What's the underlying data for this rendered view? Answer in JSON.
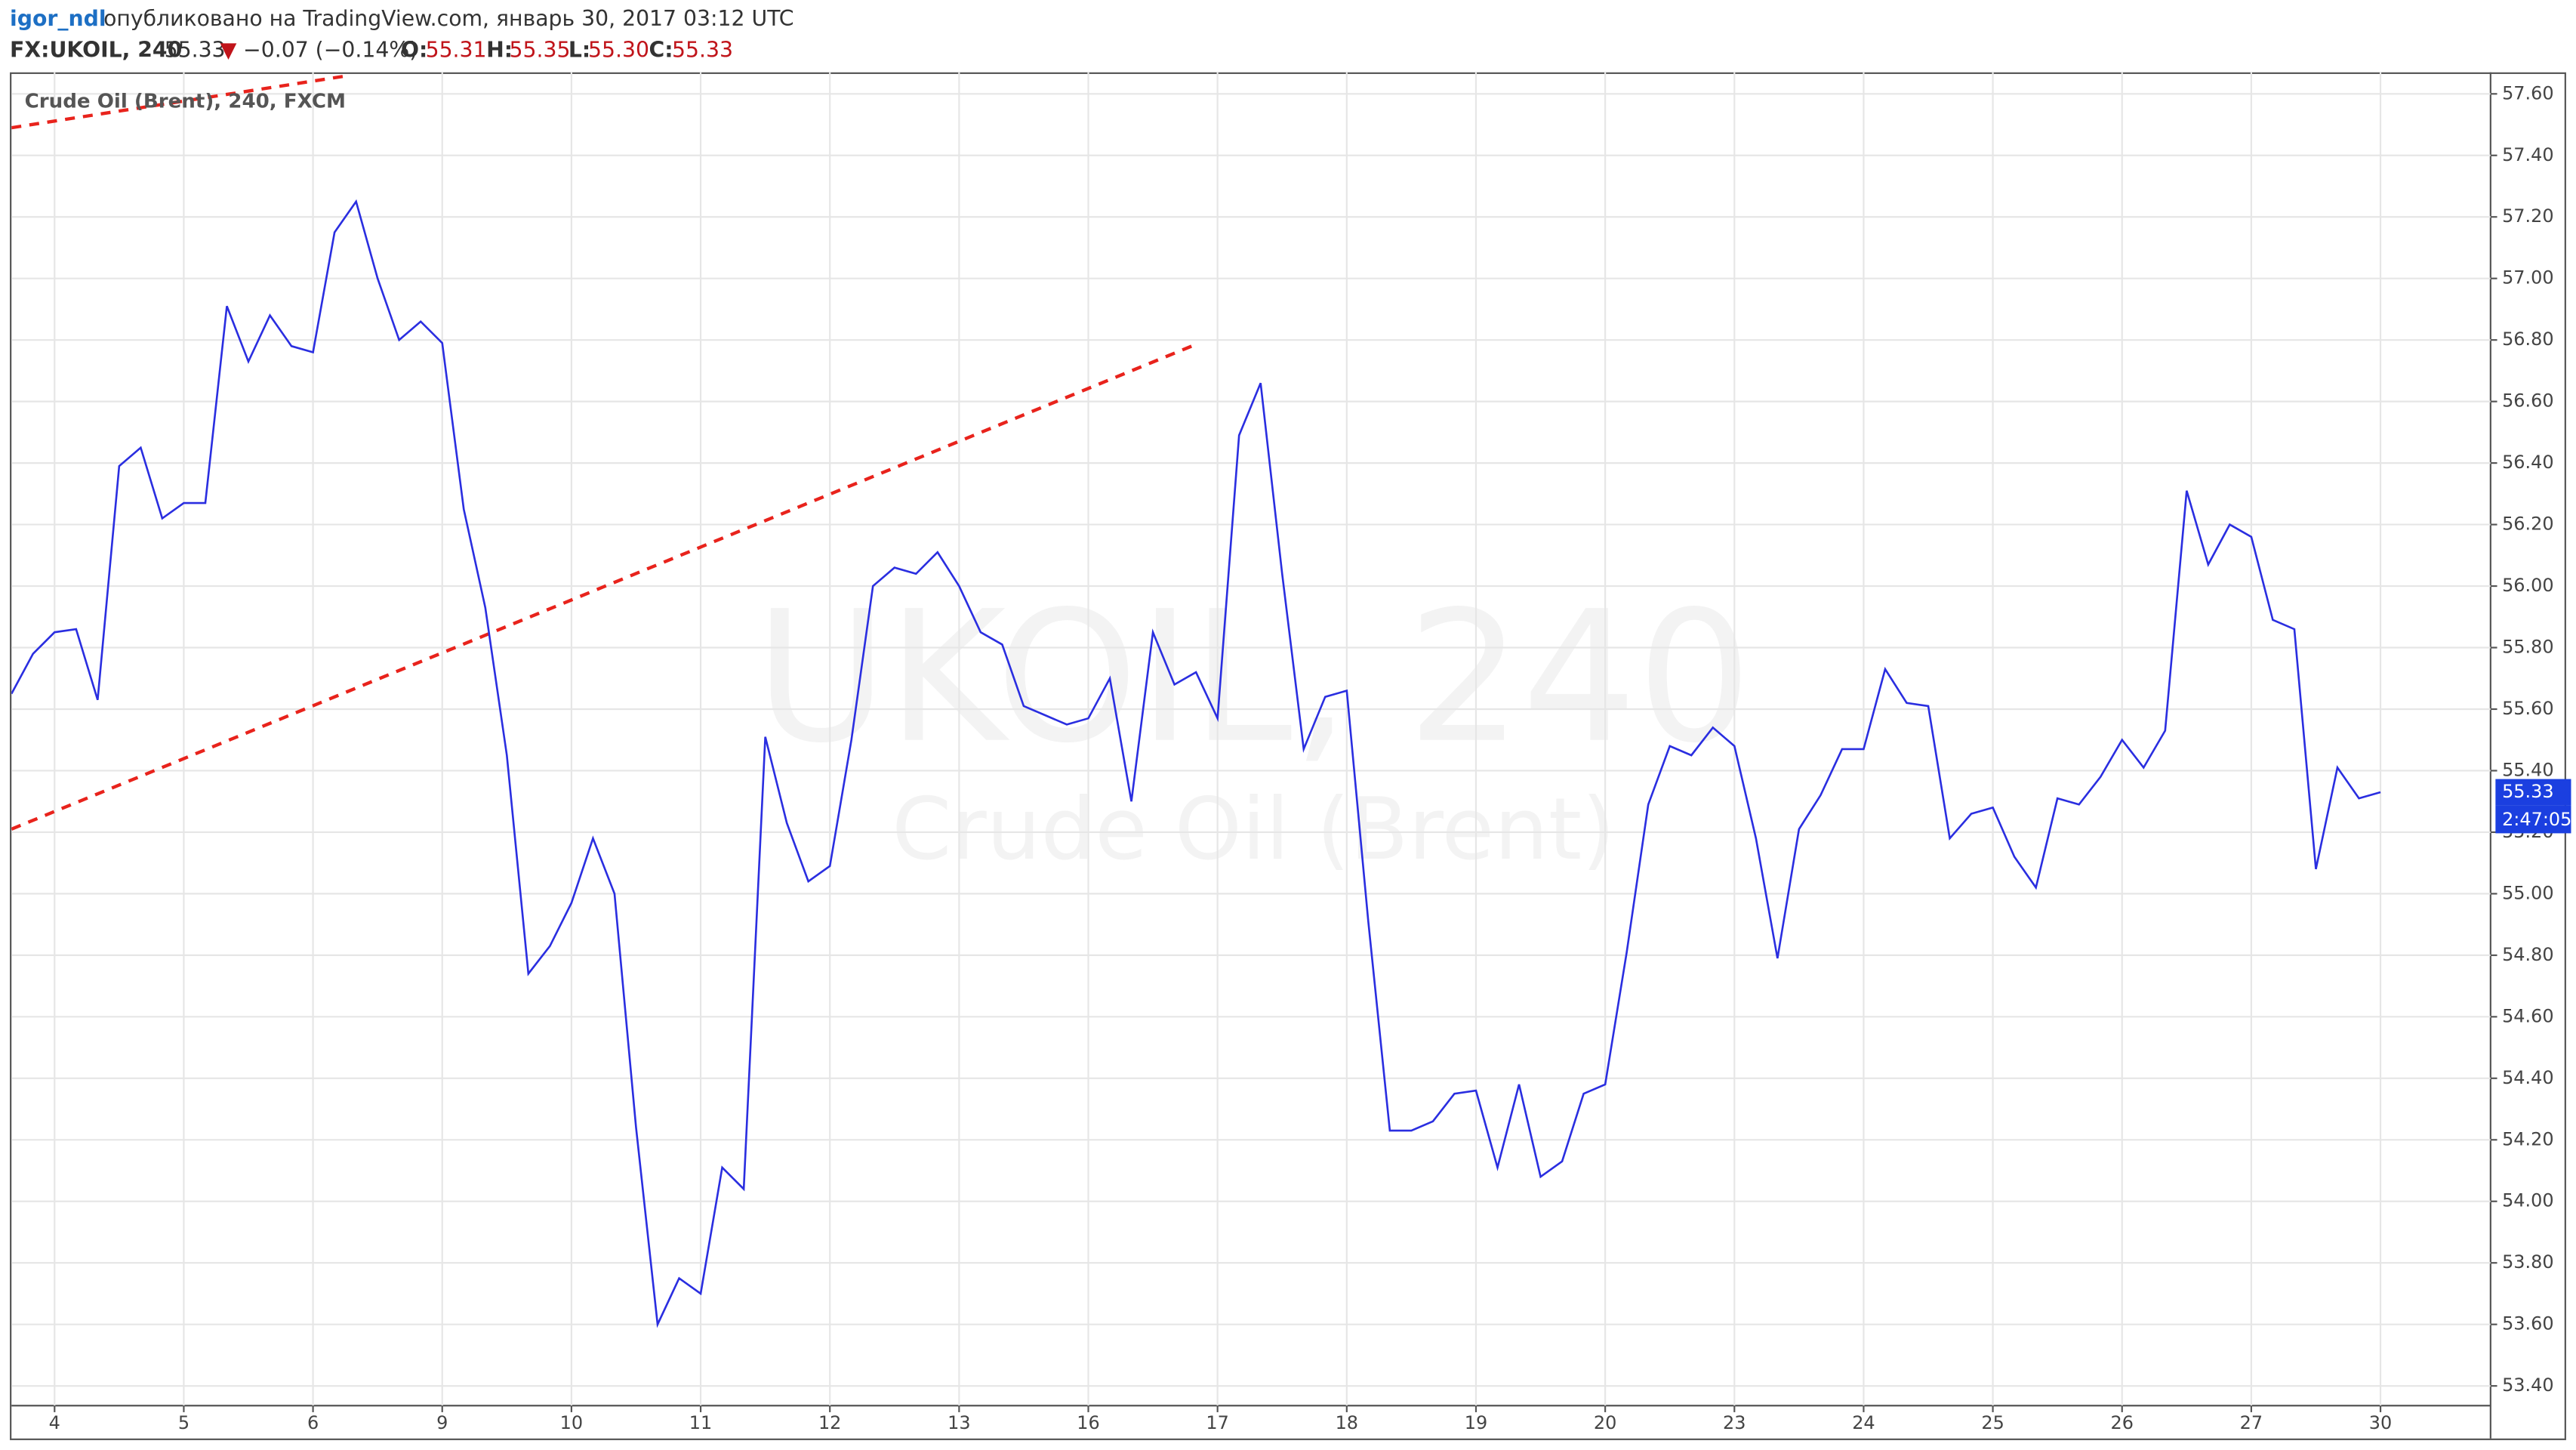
{
  "header": {
    "user": "igor_ndl",
    "published": "опубликовано на TradingView.com, январь 30, 2017 03:12 UTC",
    "symbol": "FX:UKOIL, 240",
    "price": "55.33",
    "arrow": "▼",
    "change": "−0.07 (−0.14%)",
    "open_label": "O:",
    "open": "55.31",
    "high_label": "H:",
    "high": "55.35",
    "low_label": "L:",
    "low": "55.30",
    "close_label": "C:",
    "close": "55.33"
  },
  "chart_data": {
    "type": "line",
    "legend": "Crude Oil (Brent), 240, FXCM",
    "watermark": "UKOIL, 240",
    "watermark_subtitle": "Crude Oil (Brent)",
    "categories": [
      null,
      null,
      "4",
      null,
      null,
      null,
      null,
      null,
      "5",
      null,
      null,
      null,
      null,
      null,
      "6",
      null,
      null,
      null,
      null,
      null,
      "9",
      null,
      null,
      null,
      null,
      null,
      "10",
      null,
      null,
      null,
      null,
      null,
      "11",
      null,
      null,
      null,
      null,
      null,
      "12",
      null,
      null,
      null,
      null,
      null,
      "13",
      null,
      null,
      null,
      null,
      null,
      "16",
      null,
      null,
      null,
      null,
      null,
      "17",
      null,
      null,
      null,
      null,
      null,
      "18",
      null,
      null,
      null,
      null,
      null,
      "19",
      null,
      null,
      null,
      null,
      null,
      "20",
      null,
      null,
      null,
      null,
      null,
      "23",
      null,
      null,
      null,
      null,
      null,
      "24",
      null,
      null,
      null,
      null,
      null,
      "25",
      null,
      null,
      null,
      null,
      null,
      "26",
      null,
      null,
      null,
      null,
      null,
      "27",
      null,
      null,
      null,
      null,
      null,
      "30"
    ],
    "series": [
      {
        "name": "UKOIL",
        "color": "#2a2ee0",
        "values": [
          55.65,
          55.78,
          55.85,
          55.86,
          55.63,
          56.39,
          56.45,
          56.22,
          56.27,
          56.27,
          56.91,
          56.73,
          56.88,
          56.78,
          56.76,
          57.15,
          57.25,
          57.0,
          56.8,
          56.86,
          56.79,
          56.25,
          55.93,
          55.45,
          54.74,
          54.83,
          54.97,
          55.18,
          55.0,
          54.24,
          53.6,
          53.75,
          53.7,
          54.11,
          54.04,
          55.51,
          55.23,
          55.04,
          55.09,
          55.5,
          56.0,
          56.06,
          56.04,
          56.11,
          56.0,
          55.85,
          55.81,
          55.61,
          55.58,
          55.55,
          55.57,
          55.7,
          55.3,
          55.85,
          55.68,
          55.72,
          55.57,
          56.49,
          56.66,
          56.04,
          55.47,
          55.64,
          55.66,
          54.91,
          54.23,
          54.23,
          54.26,
          54.35,
          54.36,
          54.11,
          54.38,
          54.08,
          54.13,
          54.35,
          54.38,
          54.81,
          55.29,
          55.48,
          55.45,
          55.54,
          55.48,
          55.18,
          54.79,
          55.21,
          55.32,
          55.47,
          55.47,
          55.73,
          55.62,
          55.61,
          55.18,
          55.26,
          55.28,
          55.12,
          55.02,
          55.31,
          55.29,
          55.38,
          55.5,
          55.41,
          55.53,
          56.31,
          56.07,
          56.2,
          56.16,
          55.89,
          55.86,
          55.08,
          55.41,
          55.31,
          55.33
        ]
      }
    ],
    "trendlines": [
      {
        "color": "#e8231c",
        "x": [
          0,
          54.8
        ],
        "y": [
          55.21,
          56.78
        ]
      },
      {
        "color": "#e8231c",
        "x": [
          0,
          15.7
        ],
        "y": [
          57.49,
          57.66
        ]
      }
    ],
    "ylim": [
      53.336,
      57.67
    ],
    "yticks": [
      {
        "value": 53.4,
        "label": "53.40"
      },
      {
        "value": 53.6,
        "label": "53.60"
      },
      {
        "value": 53.8,
        "label": "53.80"
      },
      {
        "value": 54,
        "label": "54.00"
      },
      {
        "value": 54.2,
        "label": "54.20"
      },
      {
        "value": 54.4,
        "label": "54.40"
      },
      {
        "value": 54.6,
        "label": "54.60"
      },
      {
        "value": 54.8,
        "label": "54.80"
      },
      {
        "value": 55,
        "label": "55.00"
      },
      {
        "value": 55.2,
        "label": "55.20"
      },
      {
        "value": 55.4,
        "label": "55.40"
      },
      {
        "value": 55.6,
        "label": "55.60"
      },
      {
        "value": 55.8,
        "label": "55.80"
      },
      {
        "value": 56,
        "label": "56.00"
      },
      {
        "value": 56.2,
        "label": "56.20"
      },
      {
        "value": 56.4,
        "label": "56.40"
      },
      {
        "value": 56.6,
        "label": "56.60"
      },
      {
        "value": 56.8,
        "label": "56.80"
      },
      {
        "value": 57,
        "label": "57.00"
      },
      {
        "value": 57.2,
        "label": "57.20"
      },
      {
        "value": 57.4,
        "label": "57.40"
      },
      {
        "value": 57.6,
        "label": "57.60"
      }
    ],
    "price_tag": {
      "value": 55.33,
      "label": "55.33",
      "color": "#1b3fe0"
    },
    "countdown": "2:47:05",
    "grid": true
  }
}
